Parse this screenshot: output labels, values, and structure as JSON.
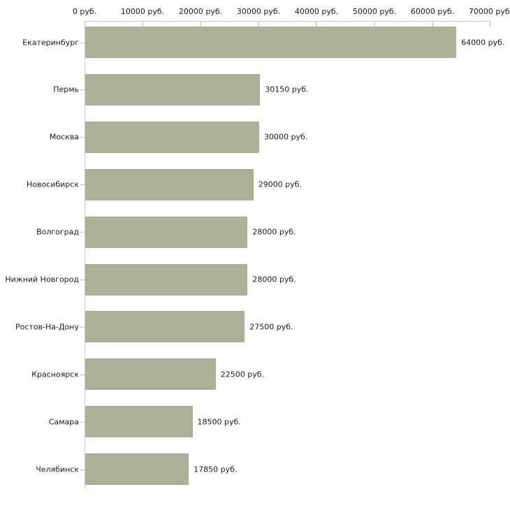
{
  "chart_data": {
    "type": "bar",
    "orientation": "horizontal",
    "title": "",
    "xlabel": "",
    "ylabel": "",
    "grid": false,
    "legend": null,
    "categories": [
      "Екатеринбург",
      "Пермь",
      "Москва",
      "Новосибирск",
      "Волгоград",
      "Нижний Новгород",
      "Ростов-На-Дону",
      "Красноярск",
      "Самара",
      "Челябинск"
    ],
    "values": [
      64000,
      30150,
      30000,
      29000,
      28000,
      28000,
      27500,
      22500,
      18500,
      17850
    ],
    "value_labels": [
      "64000 руб.",
      "30150 руб.",
      "30000 руб.",
      "29000 руб.",
      "28000 руб.",
      "28000 руб.",
      "27500 руб.",
      "22500 руб.",
      "18500 руб.",
      "17850 руб."
    ],
    "x_ticks": [
      0,
      10000,
      20000,
      30000,
      40000,
      50000,
      60000,
      70000
    ],
    "x_tick_labels": [
      "0 руб.",
      "10000 руб.",
      "20000 руб.",
      "30000 руб.",
      "40000 руб.",
      "50000 руб.",
      "60000 руб.",
      "70000 руб."
    ],
    "xlim": [
      0,
      70000
    ],
    "unit_suffix": "руб.",
    "bar_color": "#abb096",
    "x_axis_line_color": "#c6c6c6",
    "y_axis_line_color": "#cfcfc9",
    "x_tick_color": "#d9dbb0",
    "y_tick_color": "#c6c6bd",
    "text_color": "#1a1a1a",
    "background_color": "#ffffff"
  }
}
